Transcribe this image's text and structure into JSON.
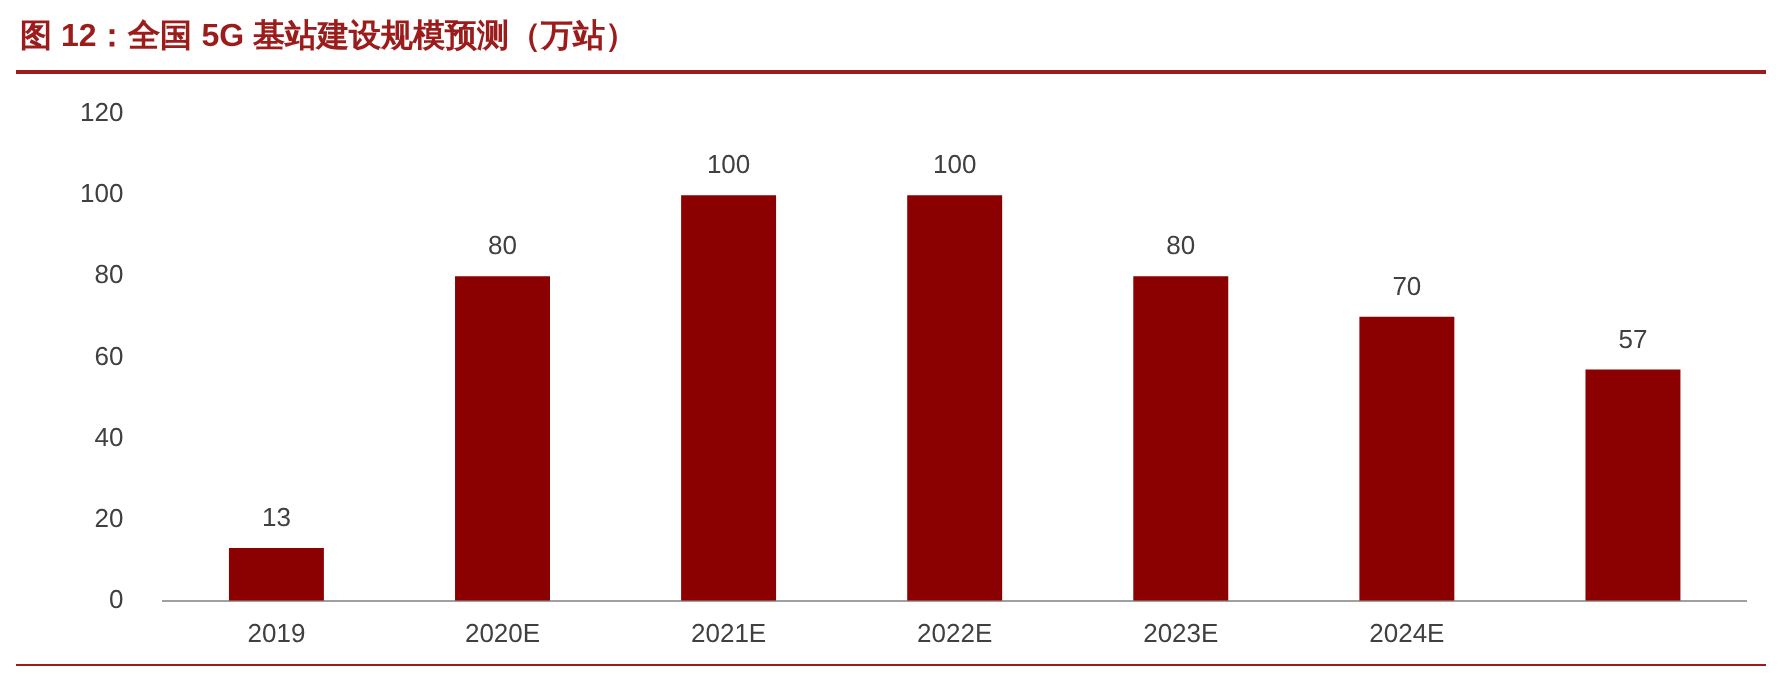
{
  "chart_data": {
    "type": "bar",
    "title": "图 12：全国 5G 基站建设规模预测（万站）",
    "categories": [
      "2019",
      "2020E",
      "2021E",
      "2022E",
      "2023E",
      "2024E",
      null
    ],
    "values": [
      13,
      80,
      100,
      100,
      80,
      70,
      57
    ],
    "color": "#8b0000",
    "ylim": [
      0,
      120
    ],
    "yticks": [
      0,
      20,
      40,
      60,
      80,
      100,
      120
    ],
    "data_labels": true
  }
}
